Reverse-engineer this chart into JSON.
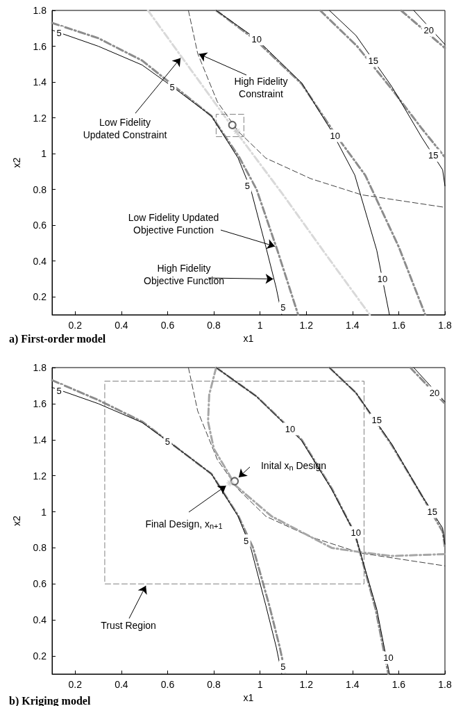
{
  "chart_data": [
    {
      "type": "line",
      "title": "a) First-order model",
      "xlabel": "x1",
      "ylabel": "x2",
      "xlim": [
        0.1,
        1.8
      ],
      "ylim": [
        0.1,
        1.8
      ],
      "xticks": [
        0.2,
        0.4,
        0.6,
        0.8,
        1,
        1.2,
        1.4,
        1.6,
        1.8
      ],
      "yticks": [
        0.2,
        0.4,
        0.6,
        0.8,
        1,
        1.2,
        1.4,
        1.6,
        1.8
      ],
      "series": [
        {
          "color": "#000000",
          "line_style": "solid",
          "x": [
            0.1,
            0.3,
            0.49,
            0.625,
            0.79,
            0.905,
            0.96,
            1.025,
            1.07,
            1.094
          ],
          "values": [
            1.69,
            1.6,
            1.495,
            1.37,
            1.21,
            0.975,
            0.8,
            0.48,
            0.25,
            0.1
          ]
        },
        {
          "color": "#000000",
          "line_style": "solid",
          "x": [
            0.81,
            0.985,
            1.18,
            1.31,
            1.41,
            1.505,
            1.56
          ],
          "values": [
            1.8,
            1.64,
            1.395,
            1.125,
            0.88,
            0.46,
            0.1
          ]
        },
        {
          "color": "#000000",
          "line_style": "solid",
          "x": [
            1.3,
            1.415,
            1.57,
            1.7,
            1.79,
            1.8
          ],
          "values": [
            1.8,
            1.66,
            1.375,
            1.09,
            0.91,
            0.82
          ]
        },
        {
          "color": "#000000",
          "line_style": "solid",
          "x": [
            1.665,
            1.8
          ],
          "values": [
            1.8,
            1.61
          ]
        },
        {
          "color": "#8c8c8c",
          "line_style": "dashdot",
          "x": [
            0.1,
            0.3,
            0.49,
            0.625,
            0.79,
            0.91,
            0.985,
            1.075,
            1.165
          ],
          "values": [
            1.73,
            1.645,
            1.52,
            1.38,
            1.21,
            0.98,
            0.8,
            0.46,
            0.1
          ]
        },
        {
          "color": "#8c8c8c",
          "line_style": "dashdot",
          "x": [
            0.81,
            0.985,
            1.18,
            1.33,
            1.455,
            1.6,
            1.715
          ],
          "values": [
            1.8,
            1.63,
            1.39,
            1.1,
            0.88,
            0.48,
            0.1
          ]
        },
        {
          "color": "#8c8c8c",
          "line_style": "dashdot",
          "x": [
            1.26,
            1.42,
            1.57,
            1.7,
            1.8
          ],
          "values": [
            1.8,
            1.6,
            1.36,
            1.14,
            0.98
          ]
        },
        {
          "color": "#8c8c8c",
          "line_style": "dashdot",
          "x": [
            1.61,
            1.8
          ],
          "values": [
            1.8,
            1.59
          ]
        },
        {
          "color": "#404040",
          "line_style": "dashed",
          "x": [
            0.69,
            0.73,
            0.815,
            0.905,
            1.025,
            1.22,
            1.44,
            1.8
          ],
          "values": [
            1.8,
            1.56,
            1.29,
            1.125,
            0.975,
            0.86,
            0.77,
            0.7
          ]
        },
        {
          "color": "#d9d9d9",
          "line_style": "dashdot",
          "x": [
            0.515,
            0.7,
            0.88,
            1.1,
            1.3,
            1.475
          ],
          "values": [
            1.8,
            1.47,
            1.15,
            0.77,
            0.41,
            0.1
          ]
        },
        {
          "color": "#808080",
          "line_style": "dashed",
          "x": [
            0.87,
            0.93,
            0.93,
            0.81,
            0.81,
            0.86
          ],
          "values": [
            1.22,
            1.22,
            1.095,
            1.095,
            1.22,
            1.22
          ]
        },
        {
          "type": "scatter",
          "color": "#404040",
          "marker": "circle",
          "x": [
            0.88
          ],
          "values": [
            1.16
          ]
        },
        {
          "type": "scatter",
          "color": "#c8c8c8",
          "marker": "cross",
          "x": [
            0.9
          ],
          "values": [
            1.125
          ]
        }
      ],
      "annotations": [
        {
          "text": "High Fidelity\nConstraint",
          "x": 0.73,
          "y": 1.56
        },
        {
          "text": "Low Fidelity\nUpdated Constraint",
          "x": 0.66,
          "y": 1.54
        },
        {
          "text": "Low Fidelity Updated\nObjective Function",
          "x": 1.07,
          "y": 0.48
        },
        {
          "text": "High Fidelity\nObjective Function",
          "x": 1.06,
          "y": 0.3
        },
        {
          "text": "5",
          "x": 0.13,
          "y": 1.675
        },
        {
          "text": "5",
          "x": 0.62,
          "y": 1.37
        },
        {
          "text": "5",
          "x": 0.945,
          "y": 0.82
        },
        {
          "text": "5",
          "x": 1.1,
          "y": 0.14
        },
        {
          "text": "10",
          "x": 0.985,
          "y": 1.64
        },
        {
          "text": "10",
          "x": 1.325,
          "y": 1.1
        },
        {
          "text": "10",
          "x": 1.53,
          "y": 0.3
        },
        {
          "text": "15",
          "x": 1.49,
          "y": 1.52
        },
        {
          "text": "15",
          "x": 1.75,
          "y": 0.99
        },
        {
          "text": "20",
          "x": 1.73,
          "y": 1.69
        }
      ]
    },
    {
      "type": "line",
      "title": "b) Kriging model",
      "xlabel": "x1",
      "ylabel": "x2",
      "xlim": [
        0.1,
        1.8
      ],
      "ylim": [
        0.1,
        1.8
      ],
      "xticks": [
        0.2,
        0.4,
        0.6,
        0.8,
        1,
        1.2,
        1.4,
        1.6,
        1.8
      ],
      "yticks": [
        0.2,
        0.4,
        0.6,
        0.8,
        1,
        1.2,
        1.4,
        1.6,
        1.8
      ],
      "series": [
        {
          "color": "#000000",
          "line_style": "solid",
          "x": [
            0.1,
            0.3,
            0.49,
            0.625,
            0.79,
            0.905,
            0.96,
            1.025,
            1.07,
            1.094
          ],
          "values": [
            1.69,
            1.6,
            1.495,
            1.37,
            1.21,
            0.975,
            0.8,
            0.48,
            0.25,
            0.1
          ]
        },
        {
          "color": "#000000",
          "line_style": "solid",
          "x": [
            0.81,
            0.985,
            1.18,
            1.31,
            1.41,
            1.505,
            1.56
          ],
          "values": [
            1.8,
            1.64,
            1.395,
            1.125,
            0.88,
            0.46,
            0.1
          ]
        },
        {
          "color": "#000000",
          "line_style": "solid",
          "x": [
            1.3,
            1.415,
            1.57,
            1.7,
            1.79,
            1.8
          ],
          "values": [
            1.8,
            1.66,
            1.375,
            1.09,
            0.91,
            0.82
          ]
        },
        {
          "color": "#000000",
          "line_style": "solid",
          "x": [
            1.665,
            1.8
          ],
          "values": [
            1.8,
            1.61
          ]
        },
        {
          "color": "#8c8c8c",
          "line_style": "dashdot",
          "x": [
            0.1,
            0.3,
            0.49,
            0.625,
            0.79,
            0.905,
            0.97,
            1.04,
            1.085,
            1.11
          ],
          "values": [
            1.73,
            1.62,
            1.5,
            1.37,
            1.21,
            0.98,
            0.8,
            0.48,
            0.25,
            0.1
          ]
        },
        {
          "color": "#8c8c8c",
          "line_style": "dashdot",
          "x": [
            0.81,
            0.985,
            1.18,
            1.31,
            1.41,
            1.5,
            1.555
          ],
          "values": [
            1.8,
            1.64,
            1.4,
            1.13,
            0.88,
            0.46,
            0.1
          ]
        },
        {
          "color": "#8c8c8c",
          "line_style": "dashdot",
          "x": [
            1.3,
            1.415,
            1.57,
            1.7,
            1.79,
            1.8
          ],
          "values": [
            1.8,
            1.66,
            1.37,
            1.09,
            0.89,
            0.8
          ]
        },
        {
          "color": "#8c8c8c",
          "line_style": "dashdot",
          "x": [
            1.65,
            1.8
          ],
          "values": [
            1.8,
            1.6
          ]
        },
        {
          "color": "#404040",
          "line_style": "dashed",
          "x": [
            0.69,
            0.73,
            0.815,
            0.905,
            1.025,
            1.22,
            1.44,
            1.8
          ],
          "values": [
            1.8,
            1.56,
            1.29,
            1.125,
            0.975,
            0.86,
            0.77,
            0.7
          ]
        },
        {
          "color": "#a6a6a6",
          "line_style": "dashdot",
          "x": [
            0.81,
            0.78,
            0.775,
            0.8,
            0.865,
            0.89,
            1.05,
            1.31,
            1.44,
            1.57,
            1.8
          ],
          "values": [
            1.8,
            1.65,
            1.5,
            1.35,
            1.21,
            1.15,
            0.975,
            0.8,
            0.775,
            0.755,
            0.765
          ]
        },
        {
          "color": "#808080",
          "line_style": "dashed",
          "x": [
            0.9,
            1.45,
            1.45,
            0.328,
            0.328,
            0.89
          ],
          "values": [
            1.725,
            1.725,
            0.6,
            0.6,
            1.725,
            1.725
          ]
        },
        {
          "type": "scatter",
          "color": "#404040",
          "marker": "circle",
          "x": [
            0.89
          ],
          "values": [
            1.17
          ]
        },
        {
          "type": "scatter",
          "color": "#c8c8c8",
          "marker": "cross",
          "x": [
            0.87
          ],
          "values": [
            1.16
          ]
        }
      ],
      "annotations": [
        {
          "text": "Inital x$_{n}$ Design",
          "x": 0.89,
          "y": 1.17
        },
        {
          "text": "Final Design, x$_{n+1}$",
          "x": 0.87,
          "y": 1.16
        },
        {
          "text": "Trust Region",
          "x": 0.51,
          "y": 0.6
        },
        {
          "text": "5",
          "x": 0.13,
          "y": 1.67
        },
        {
          "text": "5",
          "x": 0.6,
          "y": 1.39
        },
        {
          "text": "5",
          "x": 0.94,
          "y": 0.84
        },
        {
          "text": "5",
          "x": 1.1,
          "y": 0.14
        },
        {
          "text": "10",
          "x": 1.13,
          "y": 1.46
        },
        {
          "text": "10",
          "x": 1.415,
          "y": 0.885
        },
        {
          "text": "10",
          "x": 1.555,
          "y": 0.19
        },
        {
          "text": "15",
          "x": 1.505,
          "y": 1.51
        },
        {
          "text": "15",
          "x": 1.745,
          "y": 1.0
        },
        {
          "text": "20",
          "x": 1.755,
          "y": 1.66
        }
      ]
    }
  ]
}
